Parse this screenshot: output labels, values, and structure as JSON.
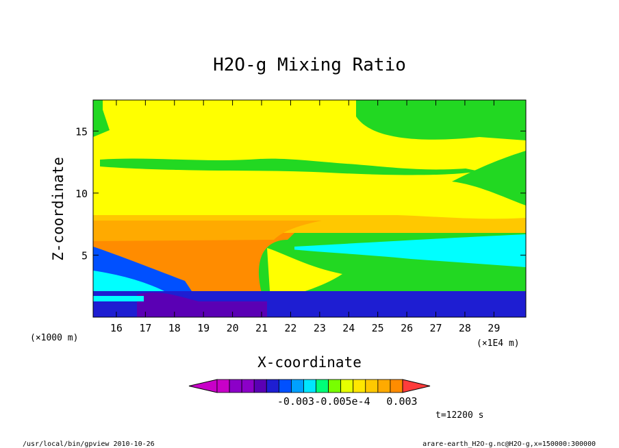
{
  "chart_data": {
    "type": "heatmap",
    "title": "H2O-g Mixing Ratio",
    "xlabel": "X-coordinate",
    "ylabel": "Z-coordinate",
    "x_units_left": "(×1000 m)",
    "x_units_right": "(×1E4 m)",
    "x_ticks": [
      "16",
      "17",
      "18",
      "19",
      "20",
      "21",
      "22",
      "23",
      "24",
      "25",
      "26",
      "27",
      "28",
      "29"
    ],
    "x_tick_values": [
      16,
      17,
      18,
      19,
      20,
      21,
      22,
      23,
      24,
      25,
      26,
      27,
      28,
      29
    ],
    "y_ticks": [
      "5",
      "10",
      "15"
    ],
    "y_tick_values": [
      5,
      10,
      15
    ],
    "xlim": [
      15.2,
      30.1
    ],
    "ylim": [
      0,
      17.5
    ],
    "colorbar": {
      "colors": [
        "#c800c8",
        "#c800c8",
        "#8c00c8",
        "#8c00c8",
        "#5a00b4",
        "#1e1ed2",
        "#0050ff",
        "#00a0ff",
        "#00e6ff",
        "#00ff78",
        "#78ff00",
        "#e6ff00",
        "#ffe600",
        "#ffc800",
        "#ffaa00",
        "#ff8c00",
        "#ff3c3c"
      ],
      "labels": [
        "-0.003",
        "-0.005e-4",
        "0.003"
      ]
    },
    "time_label": "t=12200 s",
    "grid": false,
    "legend": "colorbar-bottom"
  },
  "footer": {
    "left": "/usr/local/bin/gpview  2010-10-26",
    "right": "arare-earth_H2O-g.nc@H2O-g,x=150000:300000"
  }
}
